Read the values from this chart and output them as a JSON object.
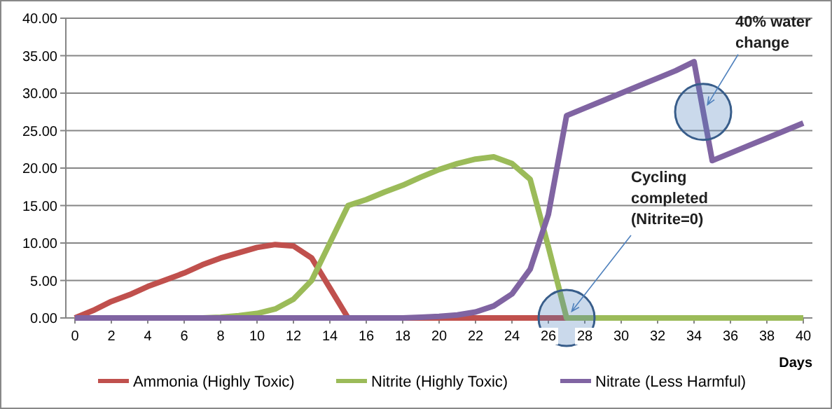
{
  "chart_data": {
    "type": "line",
    "xlabel": "Days",
    "x": [
      0,
      1,
      2,
      3,
      4,
      5,
      6,
      7,
      8,
      9,
      10,
      11,
      12,
      13,
      14,
      15,
      16,
      17,
      18,
      19,
      20,
      21,
      22,
      23,
      24,
      25,
      26,
      27,
      28,
      29,
      30,
      31,
      32,
      33,
      34,
      35,
      36,
      37,
      38,
      39,
      40
    ],
    "series": [
      {
        "name": "Ammonia (Highly Toxic)",
        "color": "#c0504d",
        "values": [
          0,
          1,
          2.2,
          3.1,
          4.2,
          5.1,
          6,
          7.1,
          8,
          8.7,
          9.4,
          9.8,
          9.6,
          8,
          4,
          0,
          0,
          0,
          0,
          0,
          0,
          0,
          0,
          0,
          0,
          0,
          0,
          0,
          null,
          null,
          null,
          null,
          null,
          null,
          null,
          null,
          null,
          null,
          null,
          null,
          null
        ]
      },
      {
        "name": "Nitrite (Highly Toxic)",
        "color": "#9bbb59",
        "values": [
          null,
          null,
          null,
          null,
          null,
          null,
          null,
          0,
          0.1,
          0.3,
          0.6,
          1.2,
          2.5,
          5,
          10,
          15,
          15.8,
          16.8,
          17.7,
          18.8,
          19.8,
          20.6,
          21.2,
          21.5,
          20.6,
          18.5,
          9.5,
          0,
          0,
          0,
          0,
          0,
          0,
          0,
          0,
          0,
          0,
          0,
          0,
          0,
          0
        ]
      },
      {
        "name": "Nitrate (Less Harmful)",
        "color": "#8064a2",
        "values": [
          0,
          0,
          0,
          0,
          0,
          0,
          0,
          0,
          0,
          0,
          0,
          0,
          0,
          0,
          0,
          0,
          0,
          0,
          0,
          0.1,
          0.2,
          0.4,
          0.8,
          1.6,
          3.2,
          6.5,
          13.8,
          27,
          28,
          29,
          30,
          31,
          32,
          33,
          34.2,
          21,
          22,
          23,
          24,
          25,
          26
        ]
      }
    ],
    "xlim": [
      -0.5,
      40.5
    ],
    "xticks": [
      0,
      2,
      4,
      6,
      8,
      10,
      12,
      14,
      16,
      18,
      20,
      22,
      24,
      26,
      28,
      30,
      32,
      34,
      36,
      38,
      40
    ],
    "ylim": [
      0,
      40
    ],
    "yticks": [
      {
        "value": 0,
        "label": "0.00"
      },
      {
        "value": 5,
        "label": "5.00"
      },
      {
        "value": 10,
        "label": "10.00"
      },
      {
        "value": 15,
        "label": "15.00"
      },
      {
        "value": 20,
        "label": "20.00"
      },
      {
        "value": 25,
        "label": "25.00"
      },
      {
        "value": 30,
        "label": "30.00"
      },
      {
        "value": 35,
        "label": "35.00"
      },
      {
        "value": 40,
        "label": "40.00"
      }
    ],
    "grid": "y",
    "legend": "bottom",
    "marker": "none",
    "line_style": "solid",
    "annotations": [
      {
        "text": "40% water change",
        "x": 34.5,
        "y": 27.5
      },
      {
        "text": "Cycling completed (Nitrite=0)",
        "x": 27,
        "y": 0
      }
    ]
  }
}
